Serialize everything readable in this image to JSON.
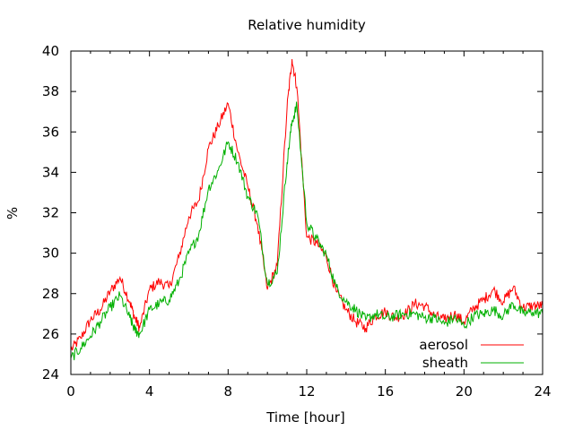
{
  "chart_data": {
    "type": "line",
    "title": "Relative humidity",
    "xlabel": "Time [hour]",
    "ylabel": "%",
    "xlim": [
      0,
      24
    ],
    "ylim": [
      24,
      40
    ],
    "xticks": [
      "0",
      "4",
      "8",
      "12",
      "16",
      "20",
      "24"
    ],
    "yticks": [
      "24",
      "26",
      "28",
      "30",
      "32",
      "34",
      "36",
      "38",
      "40"
    ],
    "grid": false,
    "legend_position": "bottom-right",
    "series": [
      {
        "name": "aerosol",
        "color": "#ff0000",
        "x": [
          0,
          0.5,
          1,
          1.5,
          2,
          2.5,
          3,
          3.25,
          3.5,
          4,
          4.5,
          5,
          5.5,
          6,
          6.5,
          7,
          7.5,
          8,
          8.5,
          9,
          9.5,
          10,
          10.5,
          11,
          11.25,
          11.5,
          12,
          12.5,
          13,
          13.5,
          14,
          14.5,
          15,
          15.5,
          16,
          16.5,
          17,
          17.5,
          18,
          18.5,
          19,
          19.5,
          20,
          20.5,
          21,
          21.5,
          22,
          22.5,
          23,
          23.5,
          24
        ],
        "y": [
          25.2,
          25.8,
          26.7,
          27.2,
          28.1,
          28.8,
          27.6,
          26.8,
          26.3,
          28.2,
          28.6,
          28.3,
          29.8,
          31.8,
          32.6,
          35.2,
          36.3,
          37.4,
          35.0,
          33.3,
          31.4,
          28.2,
          29.4,
          37.2,
          39.6,
          38.2,
          30.8,
          30.5,
          29.8,
          28.1,
          27.2,
          26.6,
          26.3,
          26.9,
          27.1,
          26.8,
          27.0,
          27.5,
          27.4,
          26.9,
          26.7,
          27.0,
          26.6,
          27.3,
          27.7,
          28.2,
          27.6,
          28.3,
          27.3,
          27.4,
          27.4
        ]
      },
      {
        "name": "sheath",
        "color": "#00b000",
        "x": [
          0,
          0.5,
          1,
          1.5,
          2,
          2.5,
          3,
          3.25,
          3.5,
          4,
          4.5,
          5,
          5.5,
          6,
          6.5,
          7,
          7.5,
          8,
          8.5,
          9,
          9.5,
          10,
          10.5,
          11,
          11.25,
          11.5,
          12,
          12.5,
          13,
          13.5,
          14,
          14.5,
          15,
          15.5,
          16,
          16.5,
          17,
          17.5,
          18,
          18.5,
          19,
          19.5,
          20,
          20.5,
          21,
          21.5,
          22,
          22.5,
          23,
          23.5,
          24
        ],
        "y": [
          24.8,
          25.3,
          25.9,
          26.6,
          27.3,
          27.9,
          26.8,
          26.2,
          26.0,
          27.2,
          27.5,
          27.7,
          28.6,
          30.0,
          30.9,
          33.2,
          34.1,
          35.5,
          34.5,
          32.8,
          31.9,
          28.5,
          29.0,
          34.5,
          36.5,
          37.3,
          31.5,
          30.7,
          29.9,
          28.3,
          27.6,
          27.2,
          26.7,
          27.0,
          26.8,
          26.9,
          27.0,
          27.0,
          26.8,
          26.8,
          26.5,
          26.8,
          26.4,
          26.9,
          27.0,
          27.2,
          26.9,
          27.5,
          27.0,
          27.1,
          27.0
        ]
      }
    ]
  }
}
